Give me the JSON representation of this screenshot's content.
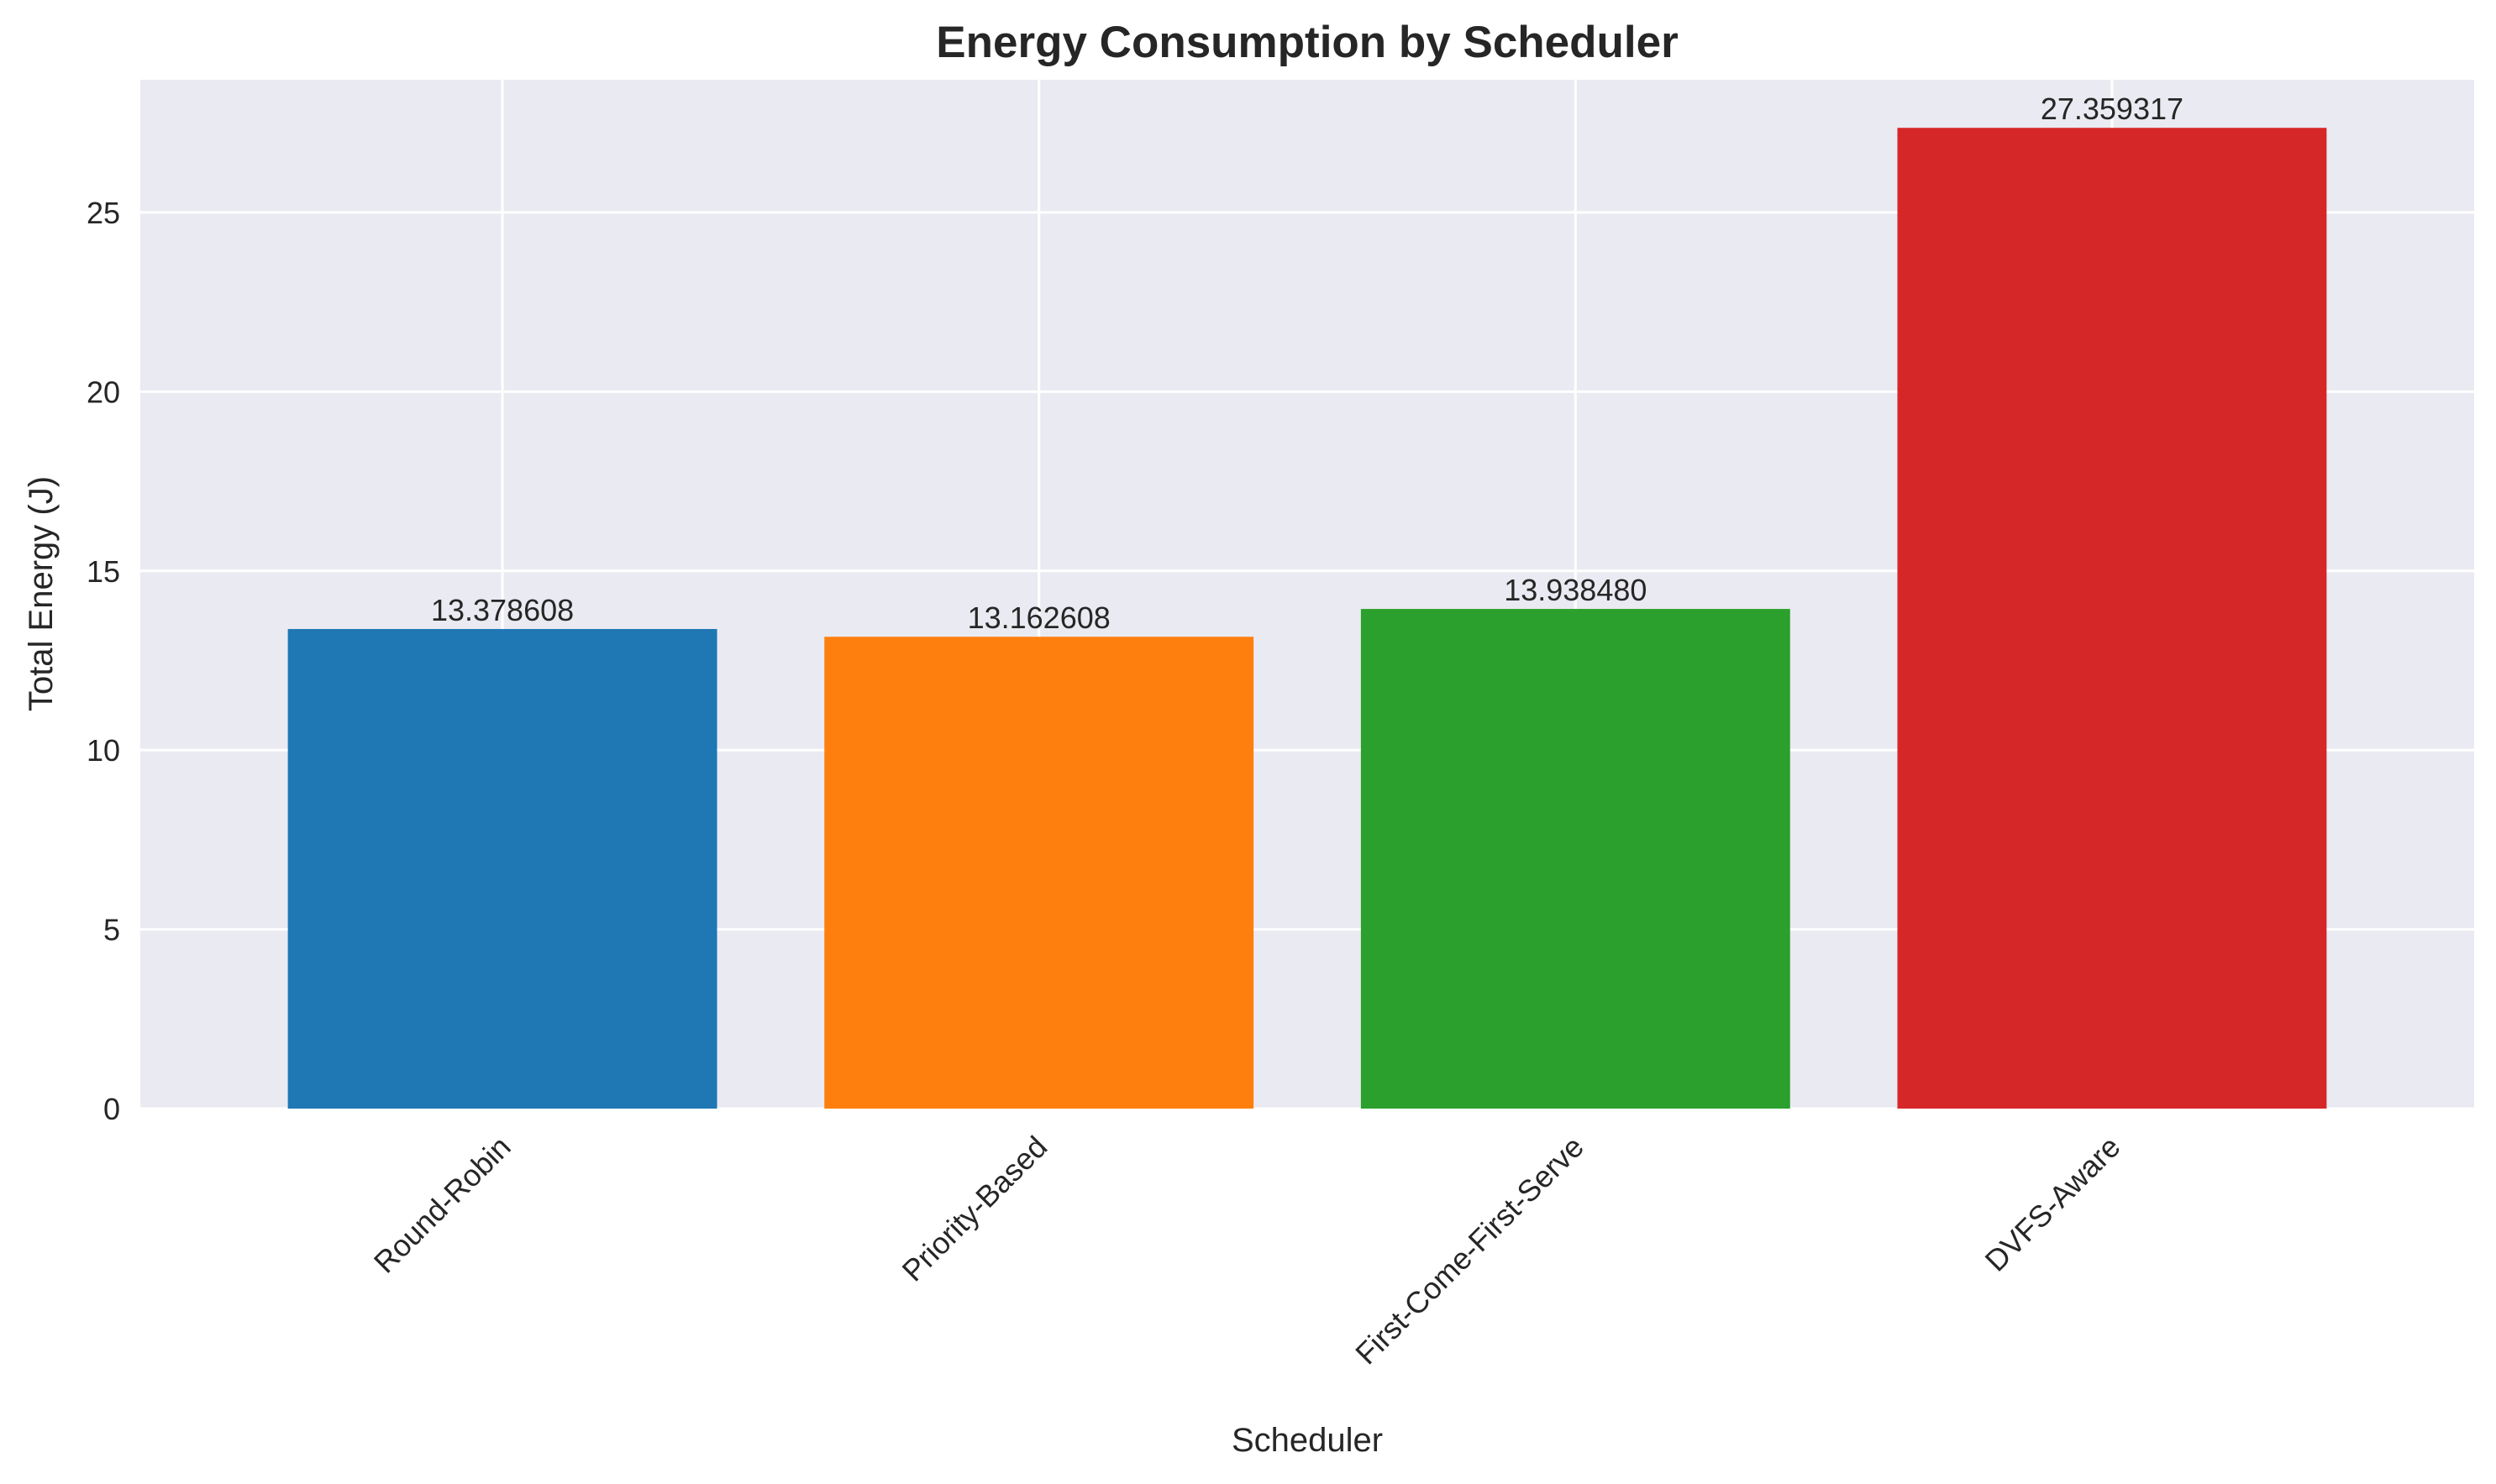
{
  "chart_data": {
    "type": "bar",
    "title": "Energy Consumption by Scheduler",
    "xlabel": "Scheduler",
    "ylabel": "Total Energy (J)",
    "categories": [
      "Round-Robin",
      "Priority-Based",
      "First-Come-First-Serve",
      "DVFS-Aware"
    ],
    "values": [
      13.378608,
      13.162608,
      13.93848,
      27.359317
    ],
    "value_labels": [
      "13.378608",
      "13.162608",
      "13.938480",
      "27.359317"
    ],
    "colors": [
      "#1f77b4",
      "#ff7f0e",
      "#2ca02c",
      "#d62728"
    ],
    "ylim": [
      0,
      28.7
    ],
    "yticks": [
      0,
      5,
      10,
      15,
      20,
      25
    ],
    "grid": true,
    "background": "#eaeaf2"
  }
}
